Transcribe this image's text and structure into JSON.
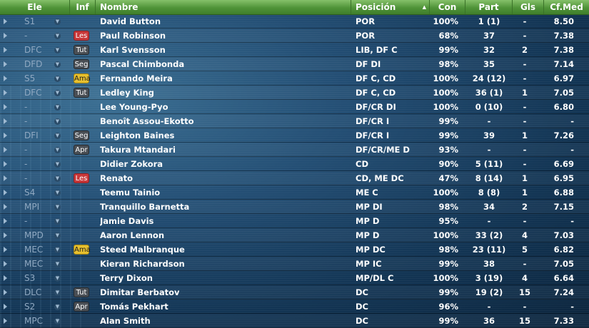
{
  "header": {
    "ele": "Ele",
    "inf": "Inf",
    "nombre": "Nombre",
    "posicion": "Posición",
    "con": "Con",
    "part": "Part",
    "gls": "Gls",
    "cfmed": "Cf.Med"
  },
  "badge_colors": {
    "Les": "#c9383a",
    "Tut": "#4a4f55",
    "Seg": "#4a4f55",
    "Apr": "#4a4f55",
    "Ama": "#e8c12f"
  },
  "players": [
    {
      "ele": "S1",
      "inf": "",
      "nombre": "David Button",
      "posicion": "POR",
      "con": "100%",
      "part": "1 (1)",
      "gls": "-",
      "cf": "8.50"
    },
    {
      "ele": "-",
      "inf": "Les",
      "nombre": "Paul Robinson",
      "posicion": "POR",
      "con": "68%",
      "part": "37",
      "gls": "-",
      "cf": "7.38"
    },
    {
      "ele": "DFC",
      "inf": "Tut",
      "nombre": "Karl Svensson",
      "posicion": "LIB, DF C",
      "con": "99%",
      "part": "32",
      "gls": "2",
      "cf": "7.38"
    },
    {
      "ele": "DFD",
      "inf": "Seg",
      "nombre": "Pascal Chimbonda",
      "posicion": "DF DI",
      "con": "98%",
      "part": "35",
      "gls": "-",
      "cf": "7.14"
    },
    {
      "ele": "S5",
      "inf": "Ama",
      "nombre": "Fernando Meira",
      "posicion": "DF C, CD",
      "con": "100%",
      "part": "24 (12)",
      "gls": "-",
      "cf": "6.97"
    },
    {
      "ele": "DFC",
      "inf": "Tut",
      "nombre": "Ledley King",
      "posicion": "DF C, CD",
      "con": "100%",
      "part": "36 (1)",
      "gls": "1",
      "cf": "7.05"
    },
    {
      "ele": "-",
      "inf": "",
      "nombre": "Lee Young-Pyo",
      "posicion": "DF/CR DI",
      "con": "100%",
      "part": "0 (10)",
      "gls": "-",
      "cf": "6.80"
    },
    {
      "ele": "-",
      "inf": "",
      "nombre": "Benoît Assou-Ekotto",
      "posicion": "DF/CR I",
      "con": "99%",
      "part": "-",
      "gls": "-",
      "cf": "-"
    },
    {
      "ele": "DFI",
      "inf": "Seg",
      "nombre": "Leighton Baines",
      "posicion": "DF/CR I",
      "con": "99%",
      "part": "39",
      "gls": "1",
      "cf": "7.26"
    },
    {
      "ele": "-",
      "inf": "Apr",
      "nombre": "Takura Mtandari",
      "posicion": "DF/CR/ME D",
      "con": "93%",
      "part": "-",
      "gls": "-",
      "cf": "-"
    },
    {
      "ele": "-",
      "inf": "",
      "nombre": "Didier Zokora",
      "posicion": "CD",
      "con": "90%",
      "part": "5 (11)",
      "gls": "-",
      "cf": "6.69"
    },
    {
      "ele": "-",
      "inf": "Les",
      "nombre": "Renato",
      "posicion": "CD, ME DC",
      "con": "47%",
      "part": "8 (14)",
      "gls": "1",
      "cf": "6.95"
    },
    {
      "ele": "S4",
      "inf": "",
      "nombre": "Teemu Tainio",
      "posicion": "ME C",
      "con": "100%",
      "part": "8 (8)",
      "gls": "1",
      "cf": "6.88"
    },
    {
      "ele": "MPI",
      "inf": "",
      "nombre": "Tranquillo Barnetta",
      "posicion": "MP DI",
      "con": "98%",
      "part": "34",
      "gls": "2",
      "cf": "7.15"
    },
    {
      "ele": "-",
      "inf": "",
      "nombre": "Jamie Davis",
      "posicion": "MP D",
      "con": "95%",
      "part": "-",
      "gls": "-",
      "cf": "-"
    },
    {
      "ele": "MPD",
      "inf": "",
      "nombre": "Aaron Lennon",
      "posicion": "MP D",
      "con": "100%",
      "part": "33 (2)",
      "gls": "4",
      "cf": "7.03"
    },
    {
      "ele": "MEC",
      "inf": "Ama",
      "nombre": "Steed Malbranque",
      "posicion": "MP DC",
      "con": "98%",
      "part": "23 (11)",
      "gls": "5",
      "cf": "6.82"
    },
    {
      "ele": "MEC",
      "inf": "",
      "nombre": "Kieran Richardson",
      "posicion": "MP IC",
      "con": "99%",
      "part": "38",
      "gls": "-",
      "cf": "7.05"
    },
    {
      "ele": "S3",
      "inf": "",
      "nombre": "Terry Dixon",
      "posicion": "MP/DL C",
      "con": "100%",
      "part": "3 (19)",
      "gls": "4",
      "cf": "6.64"
    },
    {
      "ele": "DLC",
      "inf": "Tut",
      "nombre": "Dimitar Berbatov",
      "posicion": "DC",
      "con": "99%",
      "part": "19 (2)",
      "gls": "15",
      "cf": "7.24"
    },
    {
      "ele": "S2",
      "inf": "Apr",
      "nombre": "Tomás Pekhart",
      "posicion": "DC",
      "con": "96%",
      "part": "-",
      "gls": "-",
      "cf": "-"
    },
    {
      "ele": "MPC",
      "inf": "",
      "nombre": "Alan Smith",
      "posicion": "DC",
      "con": "99%",
      "part": "36",
      "gls": "15",
      "cf": "7.33"
    }
  ]
}
